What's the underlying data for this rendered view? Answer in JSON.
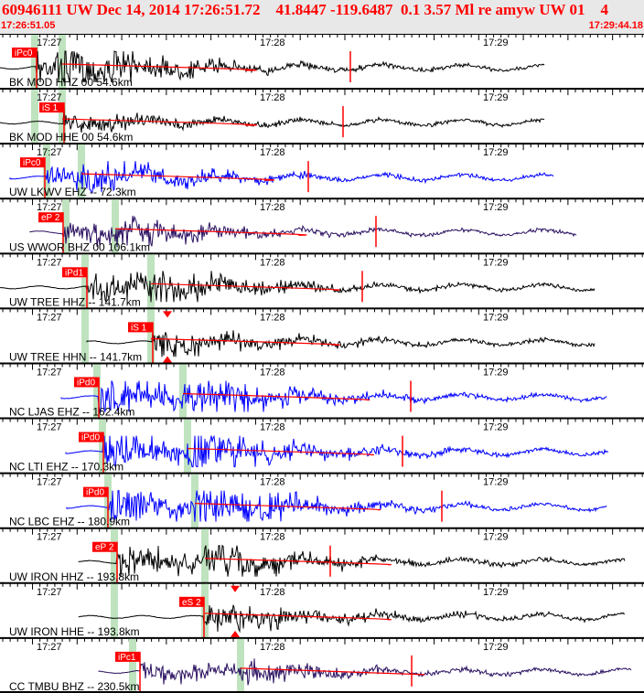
{
  "header": {
    "title": "60946111 UW Dec 14, 2014 17:26:51.72    41.8447 -119.6487  0.1 3.57 Ml re amyw UW 01    4",
    "start_time": "17:26:51.05",
    "end_time": "17:29:44.18"
  },
  "time_ticks": [
    "17:27",
    "17:28",
    "17:29"
  ],
  "traces": [
    {
      "label": "BK MOD HHZ 00 54.6km",
      "pick": "iPc0",
      "color": "#000000"
    },
    {
      "label": "BK MOD HHE 00 54.6km",
      "pick": "iS 1",
      "color": "#000000"
    },
    {
      "label": "UW LKWV EHZ -- 72.3km",
      "pick": "iPc0",
      "color": "#0000ff"
    },
    {
      "label": "US WWOR BHZ 00 106.1km",
      "pick": "eP 2",
      "color": "#2a1060"
    },
    {
      "label": "UW TREE HHZ -- 141.7km",
      "pick": "iPd1",
      "color": "#000000"
    },
    {
      "label": "UW TREE HHN -- 141.7km",
      "pick": "iS 1",
      "color": "#000000"
    },
    {
      "label": "NC LJAS EHZ -- 162.4km",
      "pick": "iPd0",
      "color": "#0000ff"
    },
    {
      "label": "NC LTI EHZ -- 170.3km",
      "pick": "iPd0",
      "color": "#0000ff"
    },
    {
      "label": "NC LBC EHZ -- 180.9km",
      "pick": "iPd0",
      "color": "#0000ff"
    },
    {
      "label": "UW IRON HHZ -- 193.8km",
      "pick": "eP 2",
      "color": "#000000"
    },
    {
      "label": "UW IRON HHE -- 193.8km",
      "pick": "eS 2",
      "color": "#000000"
    },
    {
      "label": "CC TMBU BHZ -- 230.5km",
      "pick": "iPc1",
      "color": "#2a1060"
    }
  ]
}
